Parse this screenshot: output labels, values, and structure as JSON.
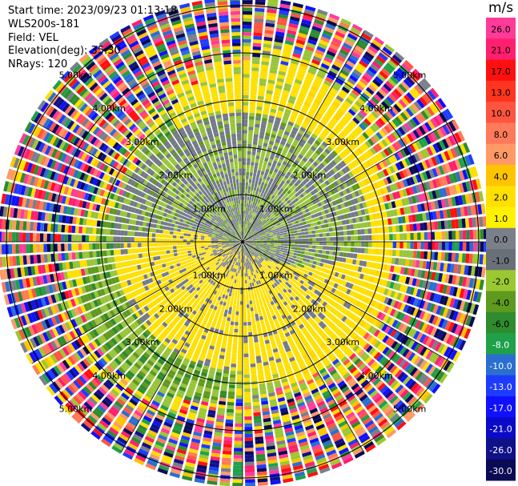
{
  "header": {
    "start_time": "Start time: 2023/09/23 01:13:18",
    "instrument": "WLS200s-181",
    "field": "Field: VEL",
    "elevation": "Elevation(deg): 35.30",
    "nrays": "NRays: 120"
  },
  "chart_data": {
    "type": "ppi",
    "field": "VEL",
    "nrays": 120,
    "range_rings": [
      {
        "label": "1.00km",
        "km": 1.0
      },
      {
        "label": "2.00km",
        "km": 2.0
      },
      {
        "label": "3.00km",
        "km": 3.0
      },
      {
        "label": "4.00km",
        "km": 4.0
      },
      {
        "label": "5.00km",
        "km": 5.0
      }
    ],
    "colorbar": {
      "unit": "m/s",
      "ticks": [
        "26.0",
        "21.0",
        "17.0",
        "13.0",
        "10.0",
        "8.0",
        "6.0",
        "4.0",
        "2.0",
        "1.0",
        "0.0",
        "-1.0",
        "-2.0",
        "-4.0",
        "-6.0",
        "-8.0",
        "-10.0",
        "-13.0",
        "-17.0",
        "-21.0",
        "-26.0",
        "-30.0"
      ],
      "colors": [
        "#ff3b9a",
        "#ff1f6e",
        "#ff1010",
        "#ff3520",
        "#ff5540",
        "#ff7a5a",
        "#ff9a66",
        "#ffc400",
        "#ffe000",
        "#fff200",
        "#7a7f8a",
        "#6a7078",
        "#9bc832",
        "#5e9a1e",
        "#2e8b2e",
        "#1fa14a",
        "#2a6fd0",
        "#1e3cff",
        "#1010ff",
        "#0a0ac8",
        "#101088",
        "#0a0a55"
      ],
      "vmin": -30,
      "vmax": 30
    }
  }
}
